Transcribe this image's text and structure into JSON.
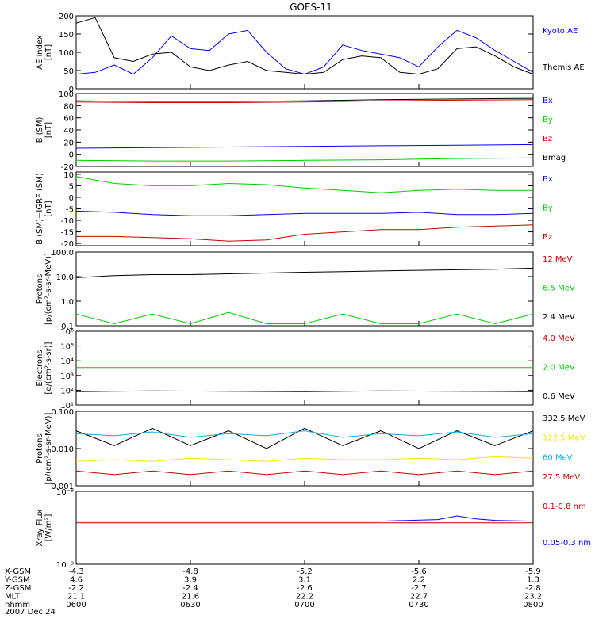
{
  "title": "GOES-11",
  "date_label": "2007 Dec 24",
  "colors": {
    "blue": "#0000ff",
    "green": "#00cc00",
    "red": "#cc0000",
    "black": "#000000",
    "yellow": "#f5e400",
    "cyan": "#11aadd"
  },
  "ephemeris": {
    "rows": [
      {
        "label": "X-GSM",
        "values": [
          "-4.3",
          "-4.8",
          "-5.2",
          "-5.6",
          "-5.9"
        ]
      },
      {
        "label": "Y-GSM",
        "values": [
          "4.6",
          "3.9",
          "3.1",
          "2.2",
          "1.3"
        ]
      },
      {
        "label": "Z-GSM",
        "values": [
          "-2.2",
          "-2.4",
          "-2.6",
          "-2.7",
          "-2.8"
        ]
      },
      {
        "label": "MLT",
        "values": [
          "21.1",
          "21.6",
          "22.2",
          "22.7",
          "23.2"
        ]
      },
      {
        "label": "hhmm",
        "values": [
          "0600",
          "0630",
          "0700",
          "0730",
          "0800"
        ]
      }
    ]
  },
  "chart_data": [
    {
      "id": "ae",
      "type": "line",
      "ylabel": [
        "AE index",
        "[nT]"
      ],
      "ylim": [
        0,
        200
      ],
      "yticks": [
        {
          "v": 0,
          "label": "0"
        },
        {
          "v": 50,
          "label": "50"
        },
        {
          "v": 100,
          "label": "100"
        },
        {
          "v": 150,
          "label": "150"
        },
        {
          "v": 200,
          "label": "200"
        }
      ],
      "x": [
        0,
        5,
        10,
        15,
        20,
        25,
        30,
        35,
        40,
        45,
        50,
        55,
        60,
        65,
        70,
        75,
        80,
        85,
        90,
        95,
        100,
        105,
        110,
        115,
        120
      ],
      "series": [
        {
          "name": "Kyoto AE",
          "color": "blue",
          "values": [
            40,
            45,
            65,
            40,
            85,
            145,
            110,
            105,
            150,
            160,
            100,
            55,
            40,
            60,
            120,
            105,
            95,
            85,
            60,
            115,
            160,
            140,
            105,
            75,
            45
          ]
        },
        {
          "name": "Themis AE",
          "color": "black",
          "values": [
            180,
            195,
            85,
            75,
            95,
            100,
            60,
            50,
            65,
            75,
            50,
            45,
            40,
            45,
            80,
            90,
            85,
            45,
            40,
            55,
            110,
            115,
            90,
            60,
            40
          ]
        }
      ]
    },
    {
      "id": "b_sm",
      "type": "line",
      "ylabel": [
        "B (SM)",
        "[nT]"
      ],
      "ylim": [
        -20,
        100
      ],
      "yticks": [
        {
          "v": -20,
          "label": "-20"
        },
        {
          "v": 0,
          "label": "0"
        },
        {
          "v": 20,
          "label": "20"
        },
        {
          "v": 40,
          "label": "40"
        },
        {
          "v": 60,
          "label": "60"
        },
        {
          "v": 80,
          "label": "80"
        },
        {
          "v": 100,
          "label": "100"
        }
      ],
      "x": [
        0,
        20,
        40,
        60,
        80,
        100,
        120
      ],
      "series": [
        {
          "name": "Bx",
          "color": "blue",
          "values": [
            10,
            11,
            12,
            13,
            14,
            15,
            16
          ]
        },
        {
          "name": "By",
          "color": "green",
          "values": [
            -10,
            -11,
            -11,
            -10,
            -9,
            -7,
            -6
          ]
        },
        {
          "name": "Bz",
          "color": "red",
          "values": [
            86,
            85,
            85,
            86,
            88,
            89,
            90
          ]
        },
        {
          "name": "Bmag",
          "color": "black",
          "values": [
            88,
            87,
            87,
            88,
            90,
            91,
            92
          ]
        }
      ]
    },
    {
      "id": "b_diff",
      "type": "line",
      "ylabel": [
        "B (SM)−IGRF (SM)",
        "[nT]"
      ],
      "ylim": [
        -21,
        11
      ],
      "yticks": [
        {
          "v": -20,
          "label": "-20"
        },
        {
          "v": -15,
          "label": "-15"
        },
        {
          "v": -10,
          "label": "-10"
        },
        {
          "v": -5,
          "label": "-5"
        },
        {
          "v": 0,
          "label": "0"
        },
        {
          "v": 5,
          "label": "5"
        },
        {
          "v": 10,
          "label": "10"
        }
      ],
      "x": [
        0,
        10,
        20,
        30,
        40,
        50,
        60,
        70,
        80,
        90,
        100,
        110,
        120
      ],
      "series": [
        {
          "name": "Bx",
          "color": "blue",
          "values": [
            -6,
            -6.5,
            -7.5,
            -8,
            -8,
            -7.5,
            -7,
            -7,
            -7,
            -6.5,
            -7.5,
            -7.5,
            -7
          ]
        },
        {
          "name": "By",
          "color": "green",
          "values": [
            9,
            6,
            5,
            5,
            6,
            5.5,
            4,
            3,
            2,
            3,
            3.5,
            3,
            3
          ]
        },
        {
          "name": "Bz",
          "color": "red",
          "values": [
            -17,
            -17,
            -17.5,
            -18,
            -19,
            -18.5,
            -16,
            -15,
            -14,
            -14,
            -13,
            -12.5,
            -12
          ]
        }
      ]
    },
    {
      "id": "protons_low",
      "type": "line",
      "log": true,
      "ylabel": [
        "Protons",
        "[p/(cm²-s-sr-MeV)]"
      ],
      "ylim": [
        0.1,
        100
      ],
      "yticks": [
        {
          "v": 0.1,
          "label": "0.1"
        },
        {
          "v": 1,
          "label": "1.0"
        },
        {
          "v": 10,
          "label": "10.0"
        },
        {
          "v": 100,
          "label": "100.0"
        }
      ],
      "x": [
        0,
        10,
        20,
        30,
        40,
        50,
        60,
        70,
        80,
        90,
        100,
        110,
        120
      ],
      "series": [
        {
          "name": "12 MeV",
          "color": "red",
          "values": [
            null,
            null,
            null,
            null,
            null,
            null,
            null,
            null,
            null,
            null,
            null,
            null,
            null
          ]
        },
        {
          "name": "6.5 MeV",
          "color": "green",
          "values": [
            0.3,
            0.12,
            0.3,
            0.12,
            0.35,
            0.12,
            0.12,
            0.3,
            0.12,
            0.12,
            0.3,
            0.12,
            0.3
          ]
        },
        {
          "name": "2.4 MeV",
          "color": "black",
          "values": [
            9,
            11,
            12,
            12,
            13,
            14,
            15,
            16,
            17,
            18,
            19,
            20,
            22
          ]
        }
      ]
    },
    {
      "id": "electrons",
      "type": "line",
      "log": true,
      "ylabel": [
        "Electrons",
        "[e/(cm²-s-sr)]"
      ],
      "ylim": [
        10,
        1000000
      ],
      "yticks": [
        {
          "v": 10,
          "label": "10¹"
        },
        {
          "v": 100,
          "label": "10²"
        },
        {
          "v": 1000,
          "label": "10³"
        },
        {
          "v": 10000,
          "label": "10⁴"
        },
        {
          "v": 100000,
          "label": "10⁵"
        },
        {
          "v": 1000000,
          "label": "10⁶"
        }
      ],
      "x": [
        0,
        20,
        40,
        60,
        80,
        100,
        120
      ],
      "series": [
        {
          "name": "4.0 MeV",
          "color": "red",
          "values": [
            null,
            null,
            null,
            null,
            null,
            null,
            null
          ]
        },
        {
          "name": "2.0 MeV",
          "color": "green",
          "values": [
            3500,
            3500,
            3500,
            3500,
            3500,
            3500,
            3500
          ]
        },
        {
          "name": "0.6 MeV",
          "color": "black",
          "values": [
            80,
            90,
            85,
            80,
            90,
            85,
            80
          ]
        }
      ]
    },
    {
      "id": "protons_high",
      "type": "line",
      "log": true,
      "ylabel": [
        "Protons",
        "[p/(cm²-s-sr-MeV)]"
      ],
      "ylim": [
        0.001,
        0.1
      ],
      "yticks": [
        {
          "v": 0.001,
          "label": "0.001"
        },
        {
          "v": 0.01,
          "label": "0.010"
        },
        {
          "v": 0.1,
          "label": "0.100"
        }
      ],
      "x": [
        0,
        10,
        20,
        30,
        40,
        50,
        60,
        70,
        80,
        90,
        100,
        110,
        120
      ],
      "series": [
        {
          "name": "332.5 MeV",
          "color": "black",
          "values": [
            0.03,
            0.012,
            0.035,
            0.012,
            0.03,
            0.01,
            0.035,
            0.012,
            0.03,
            0.01,
            0.03,
            0.012,
            0.03
          ]
        },
        {
          "name": "122.5 MeV",
          "color": "yellow",
          "values": [
            0.0045,
            0.005,
            0.0045,
            0.0055,
            0.005,
            0.0045,
            0.0055,
            0.005,
            0.005,
            0.0055,
            0.005,
            0.006,
            0.0055
          ]
        },
        {
          "name": "60 MeV",
          "color": "cyan",
          "values": [
            0.025,
            0.022,
            0.028,
            0.02,
            0.025,
            0.022,
            0.03,
            0.02,
            0.025,
            0.022,
            0.028,
            0.02,
            0.025
          ]
        },
        {
          "name": "27.5 MeV",
          "color": "red",
          "values": [
            0.0025,
            0.002,
            0.0025,
            0.002,
            0.0025,
            0.002,
            0.0025,
            0.002,
            0.0025,
            0.002,
            0.0025,
            0.002,
            0.0025
          ]
        }
      ]
    },
    {
      "id": "xray",
      "type": "line",
      "log": true,
      "ylabel": [
        "Xray Flux",
        "[W/m²]"
      ],
      "ylim": [
        1e-09,
        1e-08
      ],
      "yticks": [
        {
          "v": 1e-09,
          "label": "10⁻⁹"
        },
        {
          "v": 1e-08,
          "label": "10⁻⁸"
        }
      ],
      "x": [
        0,
        20,
        40,
        60,
        80,
        95,
        100,
        105,
        110,
        120
      ],
      "series": [
        {
          "name": "0.1-0.8 nm",
          "color": "red",
          "values": [
            3.7e-09,
            3.7e-09,
            3.7e-09,
            3.7e-09,
            3.7e-09,
            3.7e-09,
            3.7e-09,
            3.7e-09,
            3.7e-09,
            3.7e-09
          ]
        },
        {
          "name": "0.05-0.3 nm",
          "color": "blue",
          "values": [
            3.9e-09,
            3.9e-09,
            3.9e-09,
            3.9e-09,
            3.9e-09,
            4.1e-09,
            4.6e-09,
            4.2e-09,
            4e-09,
            3.9e-09
          ]
        }
      ]
    }
  ]
}
